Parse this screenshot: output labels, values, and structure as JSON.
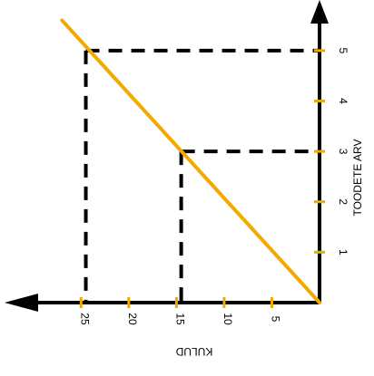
{
  "chart_data": {
    "type": "line",
    "title": "",
    "xlabel": "KULUD",
    "ylabel": "TOODETE ARV",
    "x_axis_reversed": true,
    "text_rotation": "rotated 90 degrees clockwise",
    "xlim": [
      0,
      29.5
    ],
    "ylim": [
      0,
      5.5
    ],
    "x_ticks": [
      5,
      10,
      15,
      20,
      25
    ],
    "y_ticks": [
      1,
      2,
      3,
      4,
      5
    ],
    "tick_labels": {
      "x": [
        "5",
        "10",
        "15",
        "20",
        "25"
      ],
      "y": [
        "1",
        "2",
        "3",
        "4",
        "5"
      ]
    },
    "series": [
      {
        "points": [
          {
            "x": 0,
            "y": 0
          },
          {
            "x": 27,
            "y": 5.6
          }
        ]
      }
    ],
    "guide_points": [
      {
        "x": 24.5,
        "y": 5
      },
      {
        "x": 14.5,
        "y": 3
      }
    ],
    "grid": false,
    "legend": "none"
  },
  "colors": {
    "axis": "#000000",
    "line": "#f2a900",
    "tick": "#f2a900",
    "guides": "#000000"
  }
}
